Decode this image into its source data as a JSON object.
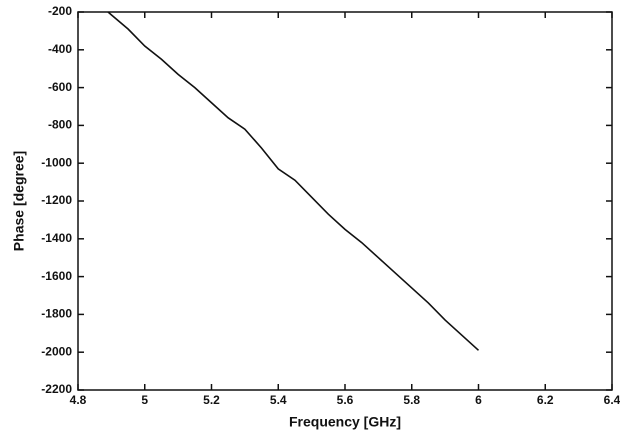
{
  "chart_data": {
    "type": "line",
    "xlabel": "Frequency [GHz]",
    "ylabel": "Phase [degree]",
    "x": [
      4.89,
      4.9,
      4.95,
      5.0,
      5.05,
      5.1,
      5.15,
      5.2,
      5.25,
      5.3,
      5.35,
      5.4,
      5.45,
      5.5,
      5.55,
      5.6,
      5.65,
      5.7,
      5.75,
      5.8,
      5.85,
      5.9,
      5.95,
      6.0
    ],
    "series": [
      {
        "color": "#111111",
        "values": [
          -200,
          -215,
          -290,
          -380,
          -450,
          -530,
          -600,
          -680,
          -760,
          -820,
          -920,
          -1030,
          -1090,
          -1180,
          -1270,
          -1350,
          -1420,
          -1500,
          -1580,
          -1660,
          -1740,
          -1830,
          -1910,
          -1990
        ]
      }
    ],
    "xlim": [
      4.8,
      6.4
    ],
    "xticks": [
      4.8,
      5,
      5.2,
      5.4,
      5.6,
      5.8,
      6,
      6.2,
      6.4
    ],
    "ylim": [
      -2200,
      -200
    ],
    "yticks": [
      -200,
      -400,
      -600,
      -800,
      -1000,
      -1200,
      -1400,
      -1600,
      -1800,
      -2000,
      -2200
    ],
    "grid": false
  }
}
